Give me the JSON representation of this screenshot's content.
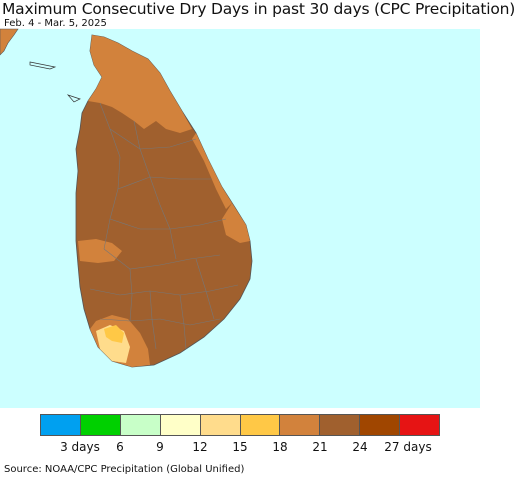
{
  "title": "Maximum Consecutive Dry Days in past 30 days (CPC Precipitation)",
  "subtitle": "Feb. 4 - Mar. 5, 2025",
  "legend": {
    "colors": [
      "#00a0f0",
      "#00d000",
      "#c8ffc8",
      "#ffffc8",
      "#ffdc8c",
      "#ffc846",
      "#d2823c",
      "#a0602e",
      "#a04600",
      "#e61414"
    ],
    "labels": [
      "3 days",
      "6",
      "9",
      "12",
      "15",
      "18",
      "21",
      "24",
      "27 days"
    ]
  },
  "source": "Source: NOAA/CPC Precipitation (Global Unified)",
  "map_colors": {
    "ocean": "#ccffff",
    "land_dominant": "#a0602e",
    "coast": "#d2823c",
    "south_light": "#ffdc8c",
    "south_yellow": "#ffc846",
    "india": "#d2823c"
  }
}
